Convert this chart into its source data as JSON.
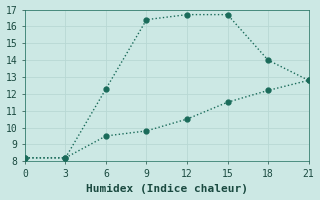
{
  "line1_x": [
    0,
    3,
    6,
    9,
    12,
    15,
    18,
    21
  ],
  "line1_y": [
    8.2,
    8.2,
    12.3,
    16.4,
    16.7,
    16.7,
    14.0,
    12.8
  ],
  "line2_x": [
    0,
    3,
    6,
    9,
    12,
    15,
    18,
    21
  ],
  "line2_y": [
    8.2,
    8.2,
    9.5,
    9.8,
    10.5,
    11.5,
    12.2,
    12.8
  ],
  "line_color": "#1a6b5a",
  "bg_color": "#cce8e4",
  "grid_color": "#b8d8d4",
  "xlabel": "Humidex (Indice chaleur)",
  "ylim": [
    8,
    17
  ],
  "xlim": [
    0,
    21
  ],
  "xticks": [
    0,
    3,
    6,
    9,
    12,
    15,
    18,
    21
  ],
  "yticks": [
    8,
    9,
    10,
    11,
    12,
    13,
    14,
    15,
    16,
    17
  ],
  "linewidth": 1.0,
  "markersize": 3.5,
  "font_color": "#1a4a40",
  "xlabel_fontsize": 8,
  "tick_fontsize": 7
}
